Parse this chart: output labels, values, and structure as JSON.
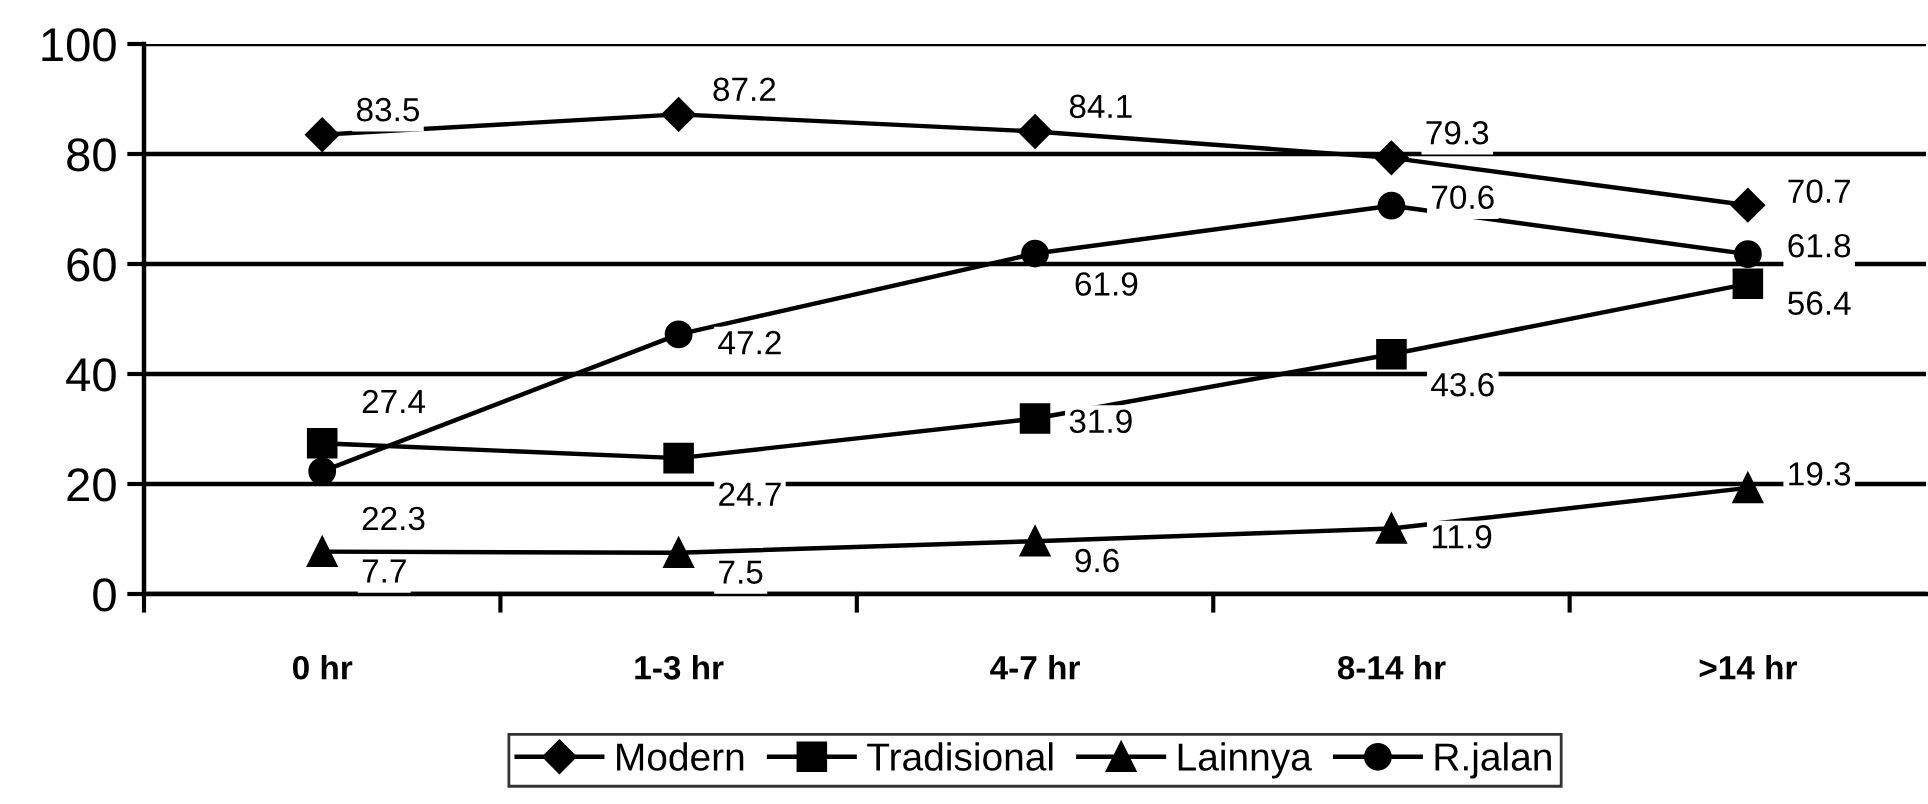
{
  "chart_data": {
    "type": "line",
    "categories": [
      "0 hr",
      "1-3 hr",
      "4-7 hr",
      "8-14 hr",
      ">14 hr"
    ],
    "series": [
      {
        "name": "Modern",
        "color": "#000000",
        "marker": "diamond",
        "values": [
          83.5,
          87.2,
          84.1,
          79.3,
          70.7
        ]
      },
      {
        "name": "Tradisional",
        "color": "#000000",
        "marker": "square",
        "values": [
          27.4,
          24.7,
          31.9,
          43.6,
          56.4
        ]
      },
      {
        "name": "Lainnya",
        "color": "#000000",
        "marker": "triangle",
        "values": [
          7.7,
          7.5,
          9.6,
          11.9,
          19.3
        ]
      },
      {
        "name": "R.jalan",
        "color": "#000000",
        "marker": "circle",
        "values": [
          22.3,
          47.2,
          61.9,
          70.6,
          61.8
        ]
      }
    ],
    "ylim": [
      0,
      100
    ],
    "yticks": [
      0,
      20,
      40,
      60,
      80,
      100
    ],
    "grid": "y",
    "legend": "bottom",
    "data_labels": true,
    "line_style": "solid"
  }
}
